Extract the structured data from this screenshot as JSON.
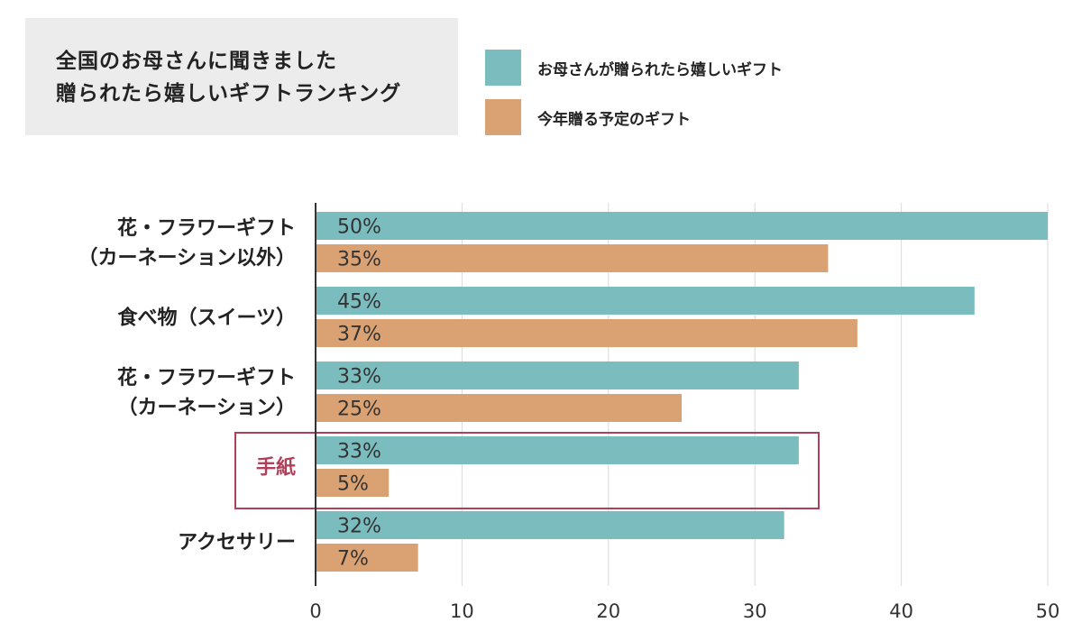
{
  "title": {
    "line1": "全国のお母さんに聞きました",
    "line2": "贈られたら嬉しいギフトランキング"
  },
  "legend": [
    {
      "label": "お母さんが贈られたら嬉しいギフト",
      "color": "#7bbcbe"
    },
    {
      "label": "今年贈る予定のギフト",
      "color": "#daa273"
    }
  ],
  "highlight": {
    "category_index": 3,
    "color": "#b0405a"
  },
  "chart_data": {
    "type": "bar",
    "orientation": "horizontal",
    "categories": [
      [
        "花・フラワーギフト",
        "（カーネーション以外）"
      ],
      [
        "食べ物（スイーツ）"
      ],
      [
        "花・フラワーギフト",
        "（カーネーション）"
      ],
      [
        "手紙"
      ],
      [
        "アクセサリー"
      ]
    ],
    "series": [
      {
        "name": "お母さんが贈られたら嬉しいギフト",
        "values": [
          50,
          45,
          33,
          33,
          32
        ],
        "labels": [
          "50%",
          "45%",
          "33%",
          "33%",
          "32%"
        ],
        "color": "#7bbcbe"
      },
      {
        "name": "今年贈る予定のギフト",
        "values": [
          35,
          37,
          25,
          5,
          7
        ],
        "labels": [
          "35%",
          "37%",
          "25%",
          "5%",
          "7%"
        ],
        "color": "#daa273"
      }
    ],
    "xlim": [
      0,
      50
    ],
    "xticks": [
      0,
      10,
      20,
      30,
      40,
      50
    ],
    "grid": true
  }
}
